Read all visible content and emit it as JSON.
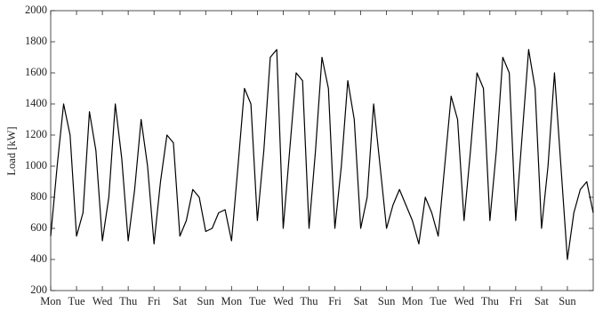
{
  "chart_data": {
    "type": "line",
    "ylabel": "Load [kW]",
    "x": [
      0,
      0.25,
      0.5,
      0.75,
      1,
      1.25,
      1.5,
      1.75,
      2,
      2.25,
      2.5,
      2.75,
      3,
      3.25,
      3.5,
      3.75,
      4,
      4.25,
      4.5,
      4.75,
      5,
      5.25,
      5.5,
      5.75,
      6,
      6.25,
      6.5,
      6.75,
      7,
      7.25,
      7.5,
      7.75,
      8,
      8.25,
      8.5,
      8.75,
      9,
      9.25,
      9.5,
      9.75,
      10,
      10.25,
      10.5,
      10.75,
      11,
      11.25,
      11.5,
      11.75,
      12,
      12.25,
      12.5,
      12.75,
      13,
      13.25,
      13.5,
      13.75,
      14,
      14.25,
      14.5,
      14.75,
      15,
      15.25,
      15.5,
      15.75,
      16,
      16.25,
      16.5,
      16.75,
      17,
      17.25,
      17.5,
      17.75,
      18,
      18.25,
      18.5,
      18.75,
      19,
      19.25,
      19.5,
      19.75,
      20,
      20.25,
      20.5,
      20.75,
      21
    ],
    "series": [
      {
        "name": "Load",
        "color": "#000000",
        "values": [
          550,
          1000,
          1400,
          1200,
          550,
          700,
          1350,
          1100,
          520,
          800,
          1400,
          1050,
          520,
          850,
          1300,
          1000,
          500,
          900,
          1200,
          1150,
          550,
          650,
          850,
          800,
          580,
          600,
          700,
          720,
          520,
          1000,
          1500,
          1400,
          650,
          1100,
          1700,
          1750,
          600,
          1100,
          1600,
          1550,
          600,
          1100,
          1700,
          1500,
          600,
          1000,
          1550,
          1300,
          600,
          800,
          1400,
          1000,
          600,
          750,
          850,
          750,
          650,
          500,
          800,
          700,
          550,
          1000,
          1450,
          1300,
          650,
          1100,
          1600,
          1500,
          650,
          1100,
          1700,
          1600,
          650,
          1200,
          1750,
          1500,
          600,
          1000,
          1600,
          1000,
          400,
          700,
          850,
          900,
          700
        ]
      }
    ],
    "xlim": [
      0,
      21
    ],
    "xticks": [
      {
        "value": 0,
        "label": "Mon"
      },
      {
        "value": 1,
        "label": "Tue"
      },
      {
        "value": 2,
        "label": "Wed"
      },
      {
        "value": 3,
        "label": "Thu"
      },
      {
        "value": 4,
        "label": "Fri"
      },
      {
        "value": 5,
        "label": "Sat"
      },
      {
        "value": 6,
        "label": "Sun"
      },
      {
        "value": 7,
        "label": "Mon"
      },
      {
        "value": 8,
        "label": "Tue"
      },
      {
        "value": 9,
        "label": "Wed"
      },
      {
        "value": 10,
        "label": "Thu"
      },
      {
        "value": 11,
        "label": "Fri"
      },
      {
        "value": 12,
        "label": "Sat"
      },
      {
        "value": 13,
        "label": "Sun"
      },
      {
        "value": 14,
        "label": "Mon"
      },
      {
        "value": 15,
        "label": "Tue"
      },
      {
        "value": 16,
        "label": "Wed"
      },
      {
        "value": 17,
        "label": "Thu"
      },
      {
        "value": 18,
        "label": "Fri"
      },
      {
        "value": 19,
        "label": "Sat"
      },
      {
        "value": 20,
        "label": "Sun"
      }
    ],
    "ylim": [
      200,
      2000
    ],
    "yticks": [
      200,
      400,
      600,
      800,
      1000,
      1200,
      1400,
      1600,
      1800,
      2000
    ]
  }
}
